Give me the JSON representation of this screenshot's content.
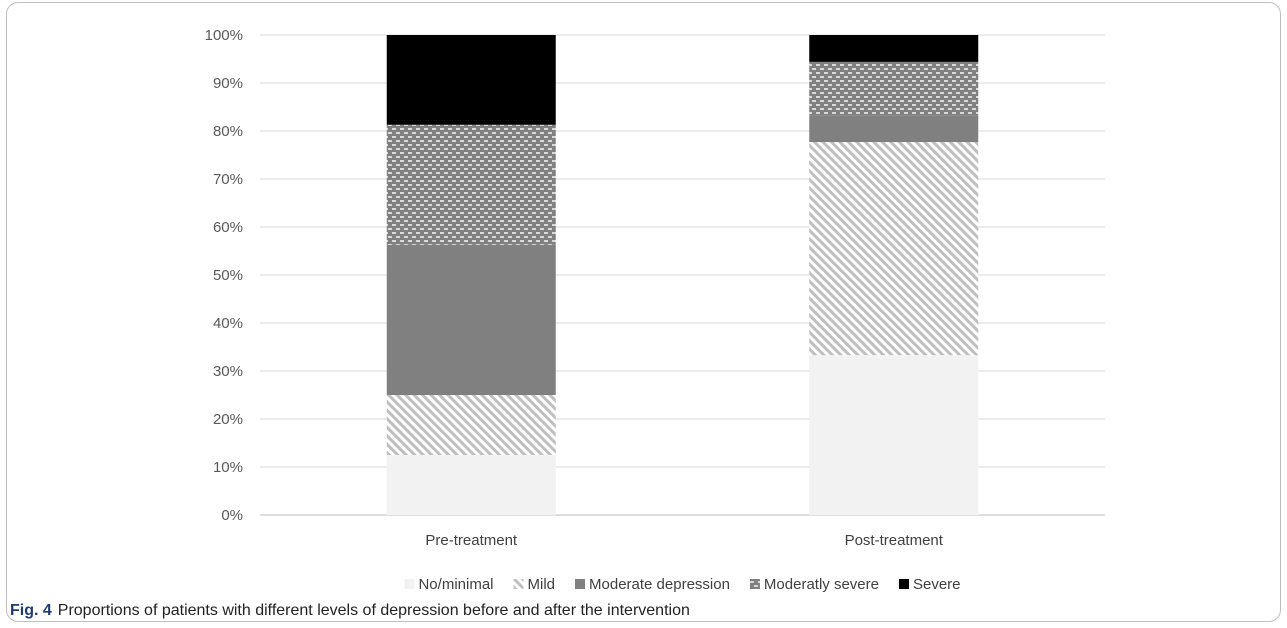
{
  "figure": {
    "label": "Fig. 4",
    "caption": "Proportions of patients with different levels of depression before and after the intervention"
  },
  "chart_data": {
    "type": "bar",
    "stacked": true,
    "title": "",
    "xlabel": "",
    "ylabel": "",
    "ylim": [
      0,
      100
    ],
    "yticks": [
      "0%",
      "10%",
      "20%",
      "30%",
      "40%",
      "50%",
      "60%",
      "70%",
      "80%",
      "90%",
      "100%"
    ],
    "grid": true,
    "legend_position": "bottom",
    "categories": [
      "Pre-treatment",
      "Post-treatment"
    ],
    "series": [
      {
        "name": "No/minimal",
        "values": [
          12.5,
          33.3
        ],
        "color": "#f2f2f2",
        "pattern": "solid-light"
      },
      {
        "name": "Mild",
        "values": [
          12.5,
          44.4
        ],
        "color": "#bfbfbf",
        "pattern": "diagonal-stripes"
      },
      {
        "name": "Moderate depression",
        "values": [
          31.3,
          5.6
        ],
        "color": "#808080",
        "pattern": "solid"
      },
      {
        "name": "Moderatly severe",
        "values": [
          25.0,
          11.1
        ],
        "color": "#7f7f7f",
        "pattern": "checker"
      },
      {
        "name": "Severe",
        "values": [
          18.7,
          5.6
        ],
        "color": "#000000",
        "pattern": "solid"
      }
    ]
  }
}
